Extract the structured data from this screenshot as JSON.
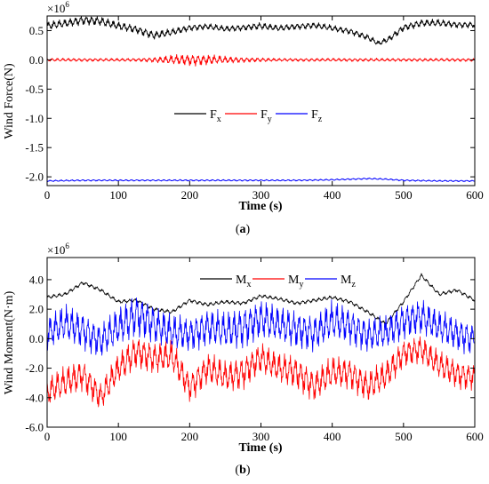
{
  "chart_data": [
    {
      "type": "line",
      "caption_letter": "a",
      "xlabel": "Time (s)",
      "ylabel": "Wind Force(N)",
      "y_multiplier": "×10",
      "y_multiplier_exp": "6",
      "xlim": [
        0,
        600
      ],
      "ylim": [
        -2.15,
        0.75
      ],
      "xticks": [
        0,
        100,
        200,
        300,
        400,
        500,
        600
      ],
      "yticks": [
        0.5,
        0.0,
        -0.5,
        -1.0,
        -1.5,
        -2.0
      ],
      "ytick_labels": [
        "0.5",
        "0.0",
        "-0.5",
        "-1.0",
        "-1.5",
        "-2.0"
      ],
      "legend_position": "middle",
      "series": [
        {
          "name": "F",
          "subscript": "x",
          "color": "#000000",
          "x": [
            0,
            25,
            50,
            75,
            100,
            125,
            150,
            175,
            200,
            225,
            250,
            275,
            300,
            325,
            350,
            375,
            400,
            425,
            450,
            465,
            480,
            500,
            525,
            550,
            575,
            600
          ],
          "y": [
            0.58,
            0.62,
            0.68,
            0.66,
            0.58,
            0.52,
            0.42,
            0.47,
            0.55,
            0.57,
            0.53,
            0.55,
            0.58,
            0.54,
            0.57,
            0.59,
            0.54,
            0.49,
            0.38,
            0.28,
            0.36,
            0.55,
            0.63,
            0.63,
            0.6,
            0.6
          ],
          "amplitude": [
            0.08,
            0.08,
            0.09,
            0.09,
            0.08,
            0.08,
            0.08,
            0.07,
            0.06,
            0.06,
            0.06,
            0.06,
            0.07,
            0.06,
            0.06,
            0.06,
            0.06,
            0.06,
            0.06,
            0.05,
            0.06,
            0.07,
            0.07,
            0.07,
            0.06,
            0.06
          ]
        },
        {
          "name": "F",
          "subscript": "y",
          "color": "#ff0000",
          "x": [
            0,
            25,
            50,
            75,
            100,
            125,
            150,
            175,
            200,
            225,
            250,
            275,
            300,
            325,
            350,
            375,
            400,
            425,
            450,
            475,
            500,
            525,
            550,
            575,
            600
          ],
          "y": [
            0.0,
            0.0,
            0.0,
            0.0,
            0.0,
            0.0,
            0.0,
            0.0,
            0.0,
            0.0,
            0.0,
            0.0,
            0.0,
            0.0,
            0.0,
            0.0,
            0.0,
            0.0,
            0.0,
            0.0,
            0.0,
            0.0,
            0.0,
            0.0,
            0.0
          ],
          "amplitude": [
            0.03,
            0.03,
            0.03,
            0.03,
            0.03,
            0.03,
            0.05,
            0.09,
            0.11,
            0.1,
            0.07,
            0.05,
            0.04,
            0.03,
            0.03,
            0.03,
            0.03,
            0.03,
            0.03,
            0.03,
            0.03,
            0.03,
            0.03,
            0.03,
            0.03
          ]
        },
        {
          "name": "F",
          "subscript": "z",
          "color": "#0000ff",
          "x": [
            0,
            50,
            100,
            150,
            200,
            250,
            300,
            350,
            400,
            450,
            475,
            500,
            550,
            600
          ],
          "y": [
            -2.07,
            -2.06,
            -2.06,
            -2.06,
            -2.06,
            -2.06,
            -2.06,
            -2.06,
            -2.05,
            -2.03,
            -2.04,
            -2.06,
            -2.07,
            -2.07
          ],
          "amplitude": [
            0.015,
            0.015,
            0.015,
            0.015,
            0.015,
            0.015,
            0.015,
            0.015,
            0.015,
            0.015,
            0.015,
            0.015,
            0.015,
            0.015
          ]
        }
      ]
    },
    {
      "type": "line",
      "caption_letter": "b",
      "xlabel": "Time (s)",
      "ylabel": "Wind Moment(N·m)",
      "y_multiplier": "×10",
      "y_multiplier_exp": "6",
      "xlim": [
        0,
        600
      ],
      "ylim": [
        -6.0,
        5.5
      ],
      "xticks": [
        0,
        100,
        200,
        300,
        400,
        500,
        600
      ],
      "yticks": [
        4.0,
        2.0,
        0.0,
        -2.0,
        -4.0,
        -6.0
      ],
      "ytick_labels": [
        "4.0",
        "2.0",
        "0.0",
        "-2.0",
        "-4.0",
        "-6.0"
      ],
      "legend_position": "top-right",
      "series": [
        {
          "name": "M",
          "subscript": "x",
          "color": "#000000",
          "x": [
            0,
            25,
            50,
            75,
            100,
            125,
            150,
            175,
            200,
            225,
            250,
            275,
            300,
            325,
            350,
            375,
            400,
            425,
            450,
            475,
            500,
            525,
            550,
            575,
            600
          ],
          "y": [
            2.8,
            3.0,
            3.8,
            3.3,
            2.5,
            2.6,
            2.0,
            1.8,
            2.6,
            2.3,
            2.5,
            2.4,
            2.9,
            2.7,
            2.4,
            2.6,
            2.8,
            2.5,
            1.8,
            1.0,
            2.5,
            4.3,
            3.0,
            3.3,
            2.6
          ],
          "amplitude": [
            0.15,
            0.15,
            0.15,
            0.15,
            0.15,
            0.15,
            0.15,
            0.15,
            0.15,
            0.15,
            0.15,
            0.15,
            0.15,
            0.15,
            0.15,
            0.15,
            0.15,
            0.15,
            0.15,
            0.15,
            0.15,
            0.15,
            0.15,
            0.15,
            0.15
          ]
        },
        {
          "name": "M",
          "subscript": "y",
          "color": "#ff0000",
          "x": [
            0,
            25,
            50,
            75,
            100,
            125,
            150,
            175,
            200,
            225,
            250,
            275,
            300,
            325,
            350,
            375,
            400,
            425,
            450,
            475,
            500,
            525,
            550,
            575,
            600
          ],
          "y": [
            -3.6,
            -3.0,
            -2.4,
            -4.0,
            -2.0,
            -0.9,
            -1.3,
            -1.2,
            -3.3,
            -2.0,
            -2.6,
            -2.3,
            -1.3,
            -2.0,
            -2.3,
            -3.2,
            -2.3,
            -2.3,
            -3.3,
            -2.5,
            -1.0,
            -0.7,
            -1.8,
            -2.4,
            -2.6
          ],
          "amplitude": [
            1.1,
            1.2,
            1.2,
            1.1,
            1.2,
            1.3,
            1.2,
            1.2,
            1.1,
            1.2,
            1.2,
            1.3,
            1.2,
            1.2,
            1.3,
            1.2,
            1.2,
            1.2,
            1.2,
            1.2,
            1.1,
            1.1,
            1.1,
            1.1,
            1.0
          ]
        },
        {
          "name": "M",
          "subscript": "z",
          "color": "#0000ff",
          "x": [
            0,
            25,
            50,
            75,
            100,
            125,
            150,
            175,
            200,
            225,
            250,
            275,
            300,
            325,
            350,
            375,
            400,
            425,
            450,
            475,
            500,
            525,
            550,
            575,
            600
          ],
          "y": [
            0.4,
            1.0,
            0.6,
            -0.2,
            0.8,
            1.6,
            1.0,
            0.4,
            0.3,
            0.8,
            0.5,
            0.8,
            1.3,
            1.0,
            0.6,
            0.4,
            1.2,
            0.9,
            0.2,
            0.4,
            1.2,
            1.5,
            0.8,
            0.3,
            0.0
          ],
          "amplitude": [
            1.3,
            1.4,
            1.4,
            1.3,
            1.5,
            1.7,
            1.5,
            1.4,
            1.3,
            1.4,
            1.4,
            1.6,
            1.5,
            1.4,
            1.5,
            1.4,
            1.5,
            1.4,
            1.3,
            1.3,
            1.4,
            1.4,
            1.3,
            1.3,
            1.2
          ]
        }
      ]
    }
  ]
}
